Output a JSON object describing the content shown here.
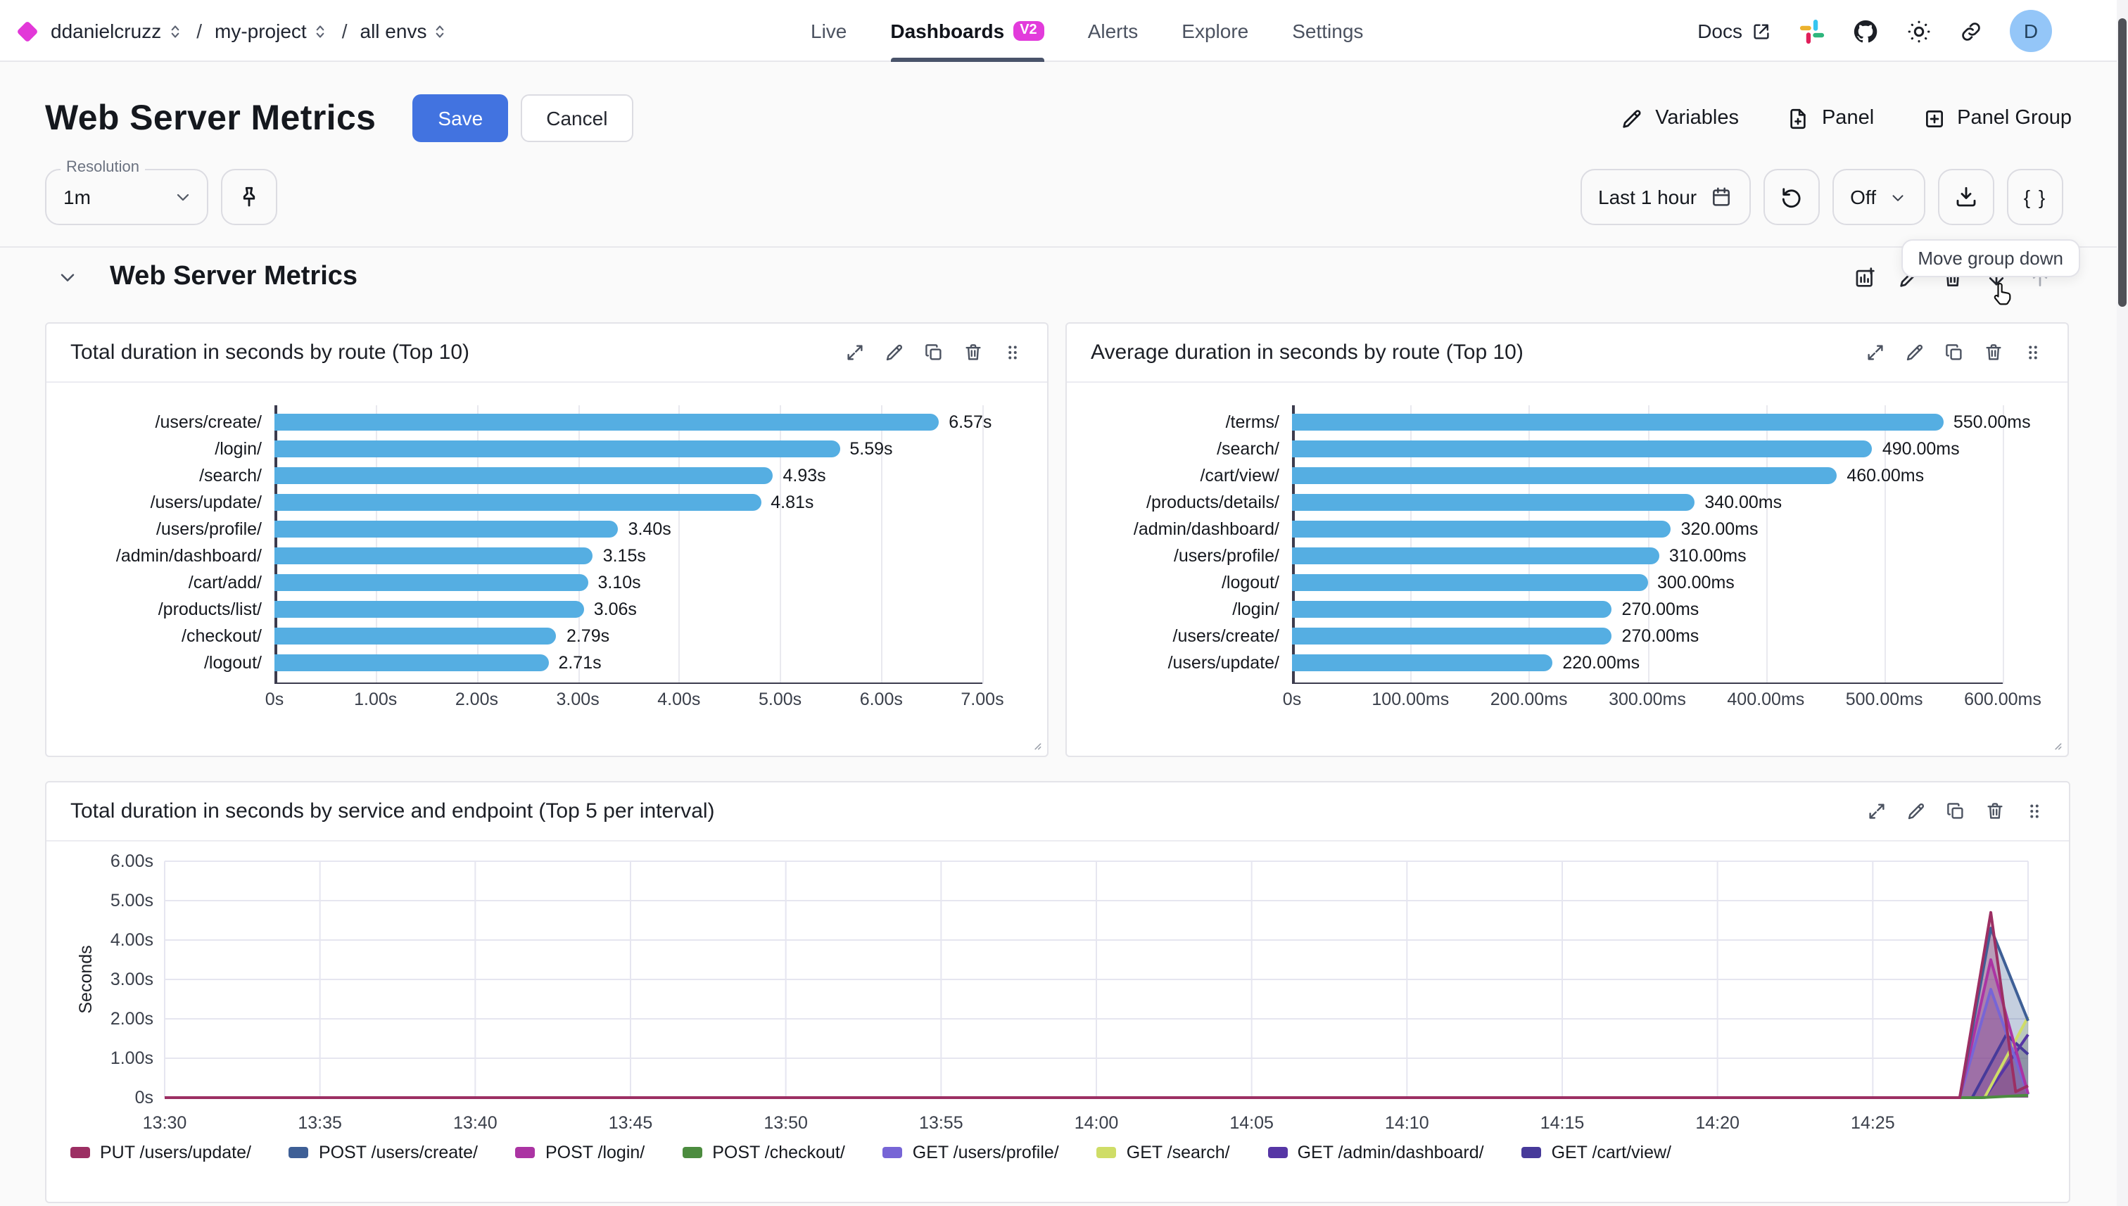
{
  "nav": {
    "breadcrumb": [
      {
        "label": "ddanielcruzz"
      },
      {
        "label": "my-project"
      },
      {
        "label": "all envs"
      }
    ],
    "separator": "/",
    "tabs": [
      {
        "label": "Live"
      },
      {
        "label": "Dashboards",
        "badge": "V2",
        "active": true
      },
      {
        "label": "Alerts"
      },
      {
        "label": "Explore"
      },
      {
        "label": "Settings"
      }
    ],
    "docs_label": "Docs",
    "avatar_initial": "D"
  },
  "header": {
    "title": "Web Server Metrics",
    "save_label": "Save",
    "cancel_label": "Cancel",
    "actions": [
      {
        "label": "Variables",
        "icon": "pencil"
      },
      {
        "label": "Panel",
        "icon": "file-plus"
      },
      {
        "label": "Panel Group",
        "icon": "square-plus"
      }
    ]
  },
  "toolbar": {
    "resolution_label": "Resolution",
    "resolution_value": "1m",
    "time_range": "Last 1 hour",
    "refresh_value": "Off",
    "braces_label": "{ }"
  },
  "tooltip": {
    "text": "Move group down"
  },
  "group": {
    "title": "Web Server Metrics"
  },
  "colors": {
    "accent_blue": "#4273e0",
    "bar_blue": "#55aee2",
    "brand_magenta": "#e23bdb",
    "avatar_bg": "#94c6f8"
  },
  "chart_data": [
    {
      "type": "bar",
      "orientation": "horizontal",
      "title": "Total duration in seconds by route (Top 10)",
      "categories": [
        "/users/create/",
        "/login/",
        "/search/",
        "/users/update/",
        "/users/profile/",
        "/admin/dashboard/",
        "/cart/add/",
        "/products/list/",
        "/checkout/",
        "/logout/"
      ],
      "values": [
        6.57,
        5.59,
        4.93,
        4.81,
        3.4,
        3.15,
        3.1,
        3.06,
        2.79,
        2.71
      ],
      "value_labels": [
        "6.57s",
        "5.59s",
        "4.93s",
        "4.81s",
        "3.40s",
        "3.15s",
        "3.10s",
        "3.06s",
        "2.79s",
        "2.71s"
      ],
      "x_ticks": [
        "0s",
        "1.00s",
        "2.00s",
        "3.00s",
        "4.00s",
        "5.00s",
        "6.00s",
        "7.00s"
      ],
      "xlim": [
        0,
        7
      ],
      "bar_color": "#55aee2",
      "grid": true
    },
    {
      "type": "bar",
      "orientation": "horizontal",
      "title": "Average duration in seconds by route (Top 10)",
      "categories": [
        "/terms/",
        "/search/",
        "/cart/view/",
        "/products/details/",
        "/admin/dashboard/",
        "/users/profile/",
        "/logout/",
        "/login/",
        "/users/create/",
        "/users/update/"
      ],
      "values": [
        550,
        490,
        460,
        340,
        320,
        310,
        300,
        270,
        270,
        220
      ],
      "value_labels": [
        "550.00ms",
        "490.00ms",
        "460.00ms",
        "340.00ms",
        "320.00ms",
        "310.00ms",
        "300.00ms",
        "270.00ms",
        "270.00ms",
        "220.00ms"
      ],
      "x_ticks": [
        "0s",
        "100.00ms",
        "200.00ms",
        "300.00ms",
        "400.00ms",
        "500.00ms",
        "600.00ms"
      ],
      "xlim": [
        0,
        600
      ],
      "bar_color": "#55aee2",
      "grid": true
    },
    {
      "type": "area",
      "title": "Total duration in seconds by service and endpoint (Top 5 per interval)",
      "ylabel": "Seconds",
      "y_ticks": [
        "6.00s",
        "5.00s",
        "4.00s",
        "3.00s",
        "2.00s",
        "1.00s",
        "0s"
      ],
      "ylim": [
        0,
        6
      ],
      "x_ticks": [
        "13:30",
        "13:35",
        "13:40",
        "13:45",
        "13:50",
        "13:55",
        "14:00",
        "14:05",
        "14:10",
        "14:15",
        "14:20",
        "14:25"
      ],
      "x_domain_minutes": [
        0,
        60
      ],
      "tick_interval_minutes": 5,
      "grid": true,
      "legend_position": "bottom",
      "series": [
        {
          "name": "PUT /users/update/",
          "color": "#9c2f63",
          "points": [
            [
              0,
              0
            ],
            [
              57.8,
              0
            ],
            [
              58.8,
              4.7
            ],
            [
              59.6,
              0.15
            ],
            [
              60,
              0.3
            ]
          ]
        },
        {
          "name": "POST /users/create/",
          "color": "#3e5f96",
          "points": [
            [
              0,
              0
            ],
            [
              57.8,
              0
            ],
            [
              58.8,
              4.3
            ],
            [
              60,
              1.95
            ]
          ]
        },
        {
          "name": "POST /login/",
          "color": "#ab34a3",
          "points": [
            [
              0,
              0
            ],
            [
              57.8,
              0
            ],
            [
              58.8,
              3.5
            ],
            [
              60,
              0.1
            ]
          ]
        },
        {
          "name": "POST /checkout/",
          "color": "#4c8c3f",
          "points": [
            [
              0,
              0
            ],
            [
              58.5,
              0
            ],
            [
              60,
              0.06
            ]
          ]
        },
        {
          "name": "GET /users/profile/",
          "color": "#7765d6",
          "points": [
            [
              0,
              0
            ],
            [
              57.8,
              0
            ],
            [
              58.8,
              2.75
            ],
            [
              60,
              0.08
            ]
          ]
        },
        {
          "name": "GET /search/",
          "color": "#cfdd67",
          "points": [
            [
              0,
              0
            ],
            [
              58.6,
              0
            ],
            [
              60,
              2.05
            ]
          ]
        },
        {
          "name": "GET /admin/dashboard/",
          "color": "#5636a5",
          "points": [
            [
              0,
              0
            ],
            [
              58.6,
              0
            ],
            [
              60,
              1.6
            ]
          ]
        },
        {
          "name": "GET /cart/view/",
          "color": "#473a9a",
          "points": [
            [
              0,
              0
            ],
            [
              58.2,
              0
            ],
            [
              59.3,
              1.6
            ],
            [
              60,
              1.1
            ]
          ]
        }
      ]
    }
  ]
}
